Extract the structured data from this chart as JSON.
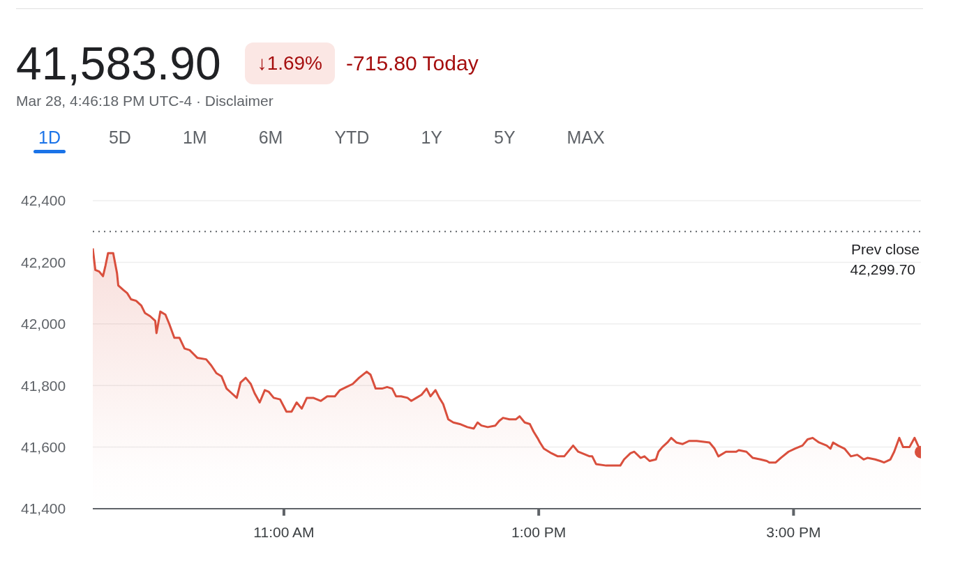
{
  "chart_data": {
    "type": "area",
    "title": "41,583.90",
    "subtitle": "Mar 28, 4:46:18 PM UTC-4 · Disclaimer",
    "annotations": [
      "↓1.69%",
      "-715.80 Today",
      "1D",
      "5D",
      "1M",
      "6M",
      "YTD",
      "1Y",
      "5Y",
      "MAX"
    ],
    "x": [
      9.5,
      9.52,
      9.55,
      9.58,
      9.6,
      9.62,
      9.66,
      9.69,
      9.7,
      9.74,
      9.77,
      9.8,
      9.84,
      9.88,
      9.91,
      9.95,
      9.99,
      10.0,
      10.03,
      10.07,
      10.1,
      10.14,
      10.18,
      10.22,
      10.26,
      10.32,
      10.39,
      10.43,
      10.47,
      10.51,
      10.55,
      10.59,
      10.63,
      10.66,
      10.7,
      10.74,
      10.77,
      10.81,
      10.85,
      10.88,
      10.92,
      10.97,
      11.02,
      11.06,
      11.1,
      11.14,
      11.18,
      11.23,
      11.29,
      11.34,
      11.4,
      11.44,
      11.49,
      11.54,
      11.59,
      11.65,
      11.68,
      11.72,
      11.77,
      11.81,
      11.85,
      11.88,
      11.92,
      11.97,
      12.0,
      12.04,
      12.08,
      12.12,
      12.15,
      12.19,
      12.22,
      12.25,
      12.29,
      12.33,
      12.38,
      12.44,
      12.49,
      12.52,
      12.55,
      12.6,
      12.66,
      12.69,
      12.72,
      12.77,
      12.82,
      12.85,
      12.89,
      12.93,
      12.96,
      12.99,
      13.01,
      13.04,
      13.1,
      13.15,
      13.2,
      13.27,
      13.31,
      13.4,
      13.42,
      13.45,
      13.53,
      13.64,
      13.67,
      13.72,
      13.75,
      13.8,
      13.83,
      13.87,
      13.92,
      13.94,
      13.97,
      14.01,
      14.04,
      14.08,
      14.13,
      14.18,
      14.24,
      14.34,
      14.38,
      14.41,
      14.47,
      14.55,
      14.57,
      14.63,
      14.68,
      14.74,
      14.79,
      14.81,
      14.86,
      14.9,
      14.96,
      15.01,
      15.07,
      15.11,
      15.15,
      15.2,
      15.26,
      15.29,
      15.31,
      15.35,
      15.4,
      15.45,
      15.5,
      15.55,
      15.58,
      15.64,
      15.68,
      15.71,
      15.76,
      15.79,
      15.83,
      15.86,
      15.91,
      15.95,
      16.0
    ],
    "series": [
      {
        "color": "#d94f3d",
        "values": [
          42245,
          42175,
          42170,
          42155,
          42190,
          42230,
          42230,
          42165,
          42125,
          42110,
          42100,
          42080,
          42075,
          42060,
          42035,
          42025,
          42010,
          41970,
          42040,
          42030,
          42000,
          41955,
          41955,
          41920,
          41915,
          41890,
          41885,
          41865,
          41840,
          41830,
          41790,
          41775,
          41760,
          41810,
          41825,
          41805,
          41775,
          41745,
          41785,
          41780,
          41760,
          41755,
          41715,
          41715,
          41745,
          41725,
          41760,
          41760,
          41750,
          41765,
          41765,
          41785,
          41795,
          41805,
          41825,
          41845,
          41835,
          41790,
          41790,
          41795,
          41790,
          41765,
          41765,
          41760,
          41750,
          41760,
          41770,
          41790,
          41765,
          41785,
          41760,
          41740,
          41690,
          41680,
          41675,
          41665,
          41660,
          41680,
          41670,
          41665,
          41670,
          41685,
          41695,
          41690,
          41690,
          41700,
          41680,
          41675,
          41650,
          41630,
          41615,
          41595,
          41580,
          41570,
          41570,
          41605,
          41585,
          41570,
          41570,
          41545,
          41540,
          41540,
          41560,
          41580,
          41585,
          41565,
          41570,
          41555,
          41560,
          41585,
          41600,
          41615,
          41630,
          41615,
          41610,
          41620,
          41620,
          41615,
          41595,
          41570,
          41585,
          41585,
          41590,
          41585,
          41565,
          41560,
          41555,
          41550,
          41550,
          41565,
          41585,
          41595,
          41605,
          41625,
          41630,
          41615,
          41605,
          41595,
          41615,
          41605,
          41595,
          41570,
          41575,
          41560,
          41565,
          41560,
          41555,
          41550,
          41560,
          41585,
          41630,
          41600,
          41600,
          41630,
          41584
        ]
      }
    ],
    "xlim": [
      9.5,
      16
    ],
    "xticks": [
      {
        "value": 11,
        "label": "11:00 AM"
      },
      {
        "value": 13,
        "label": "1:00 PM"
      },
      {
        "value": 15,
        "label": "3:00 PM"
      }
    ],
    "ylim": [
      41400,
      42400
    ],
    "yticks": [
      {
        "value": 41400,
        "label": "41,400"
      },
      {
        "value": 41600,
        "label": "41,600"
      },
      {
        "value": 41800,
        "label": "41,800"
      },
      {
        "value": 42000,
        "label": "42,000"
      },
      {
        "value": 42200,
        "label": "42,200"
      },
      {
        "value": 42400,
        "label": "42,400"
      }
    ],
    "grid": "y",
    "marker": "none",
    "line_style": "solid",
    "ref_lines": [
      {
        "axis": "y",
        "value": 42299.7,
        "label": "Prev close 42,299.70",
        "color": "#5f6368",
        "line_style": "dotted"
      }
    ]
  }
}
